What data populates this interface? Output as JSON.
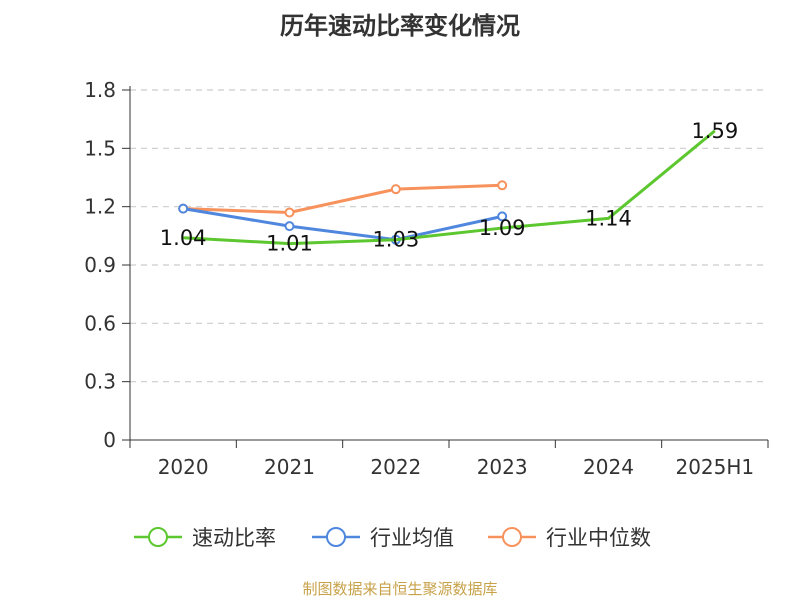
{
  "chart_data": {
    "type": "line",
    "title": "历年速动比率变化情况",
    "categories": [
      "2020",
      "2021",
      "2022",
      "2023",
      "2024",
      "2025H1"
    ],
    "yticks": [
      "0",
      "0.3",
      "0.6",
      "0.9",
      "1.2",
      "1.5",
      "1.8"
    ],
    "ylim": [
      0,
      1.8
    ],
    "grid": true,
    "legend_position": "bottom",
    "series": [
      {
        "name": "速动比率",
        "color": "#5cc72f",
        "values": [
          1.04,
          1.01,
          1.03,
          1.09,
          1.14,
          1.59
        ],
        "labels": [
          "1.04",
          "1.01",
          "1.03",
          "1.09",
          "1.14",
          "1.59"
        ]
      },
      {
        "name": "行业均值",
        "color": "#5087de",
        "values": [
          1.19,
          1.1,
          1.03,
          1.15,
          null,
          null
        ]
      },
      {
        "name": "行业中位数",
        "color": "#f7925c",
        "values": [
          1.19,
          1.17,
          1.29,
          1.31,
          null,
          null
        ]
      }
    ]
  },
  "source": "制图数据来自恒生聚源数据库"
}
